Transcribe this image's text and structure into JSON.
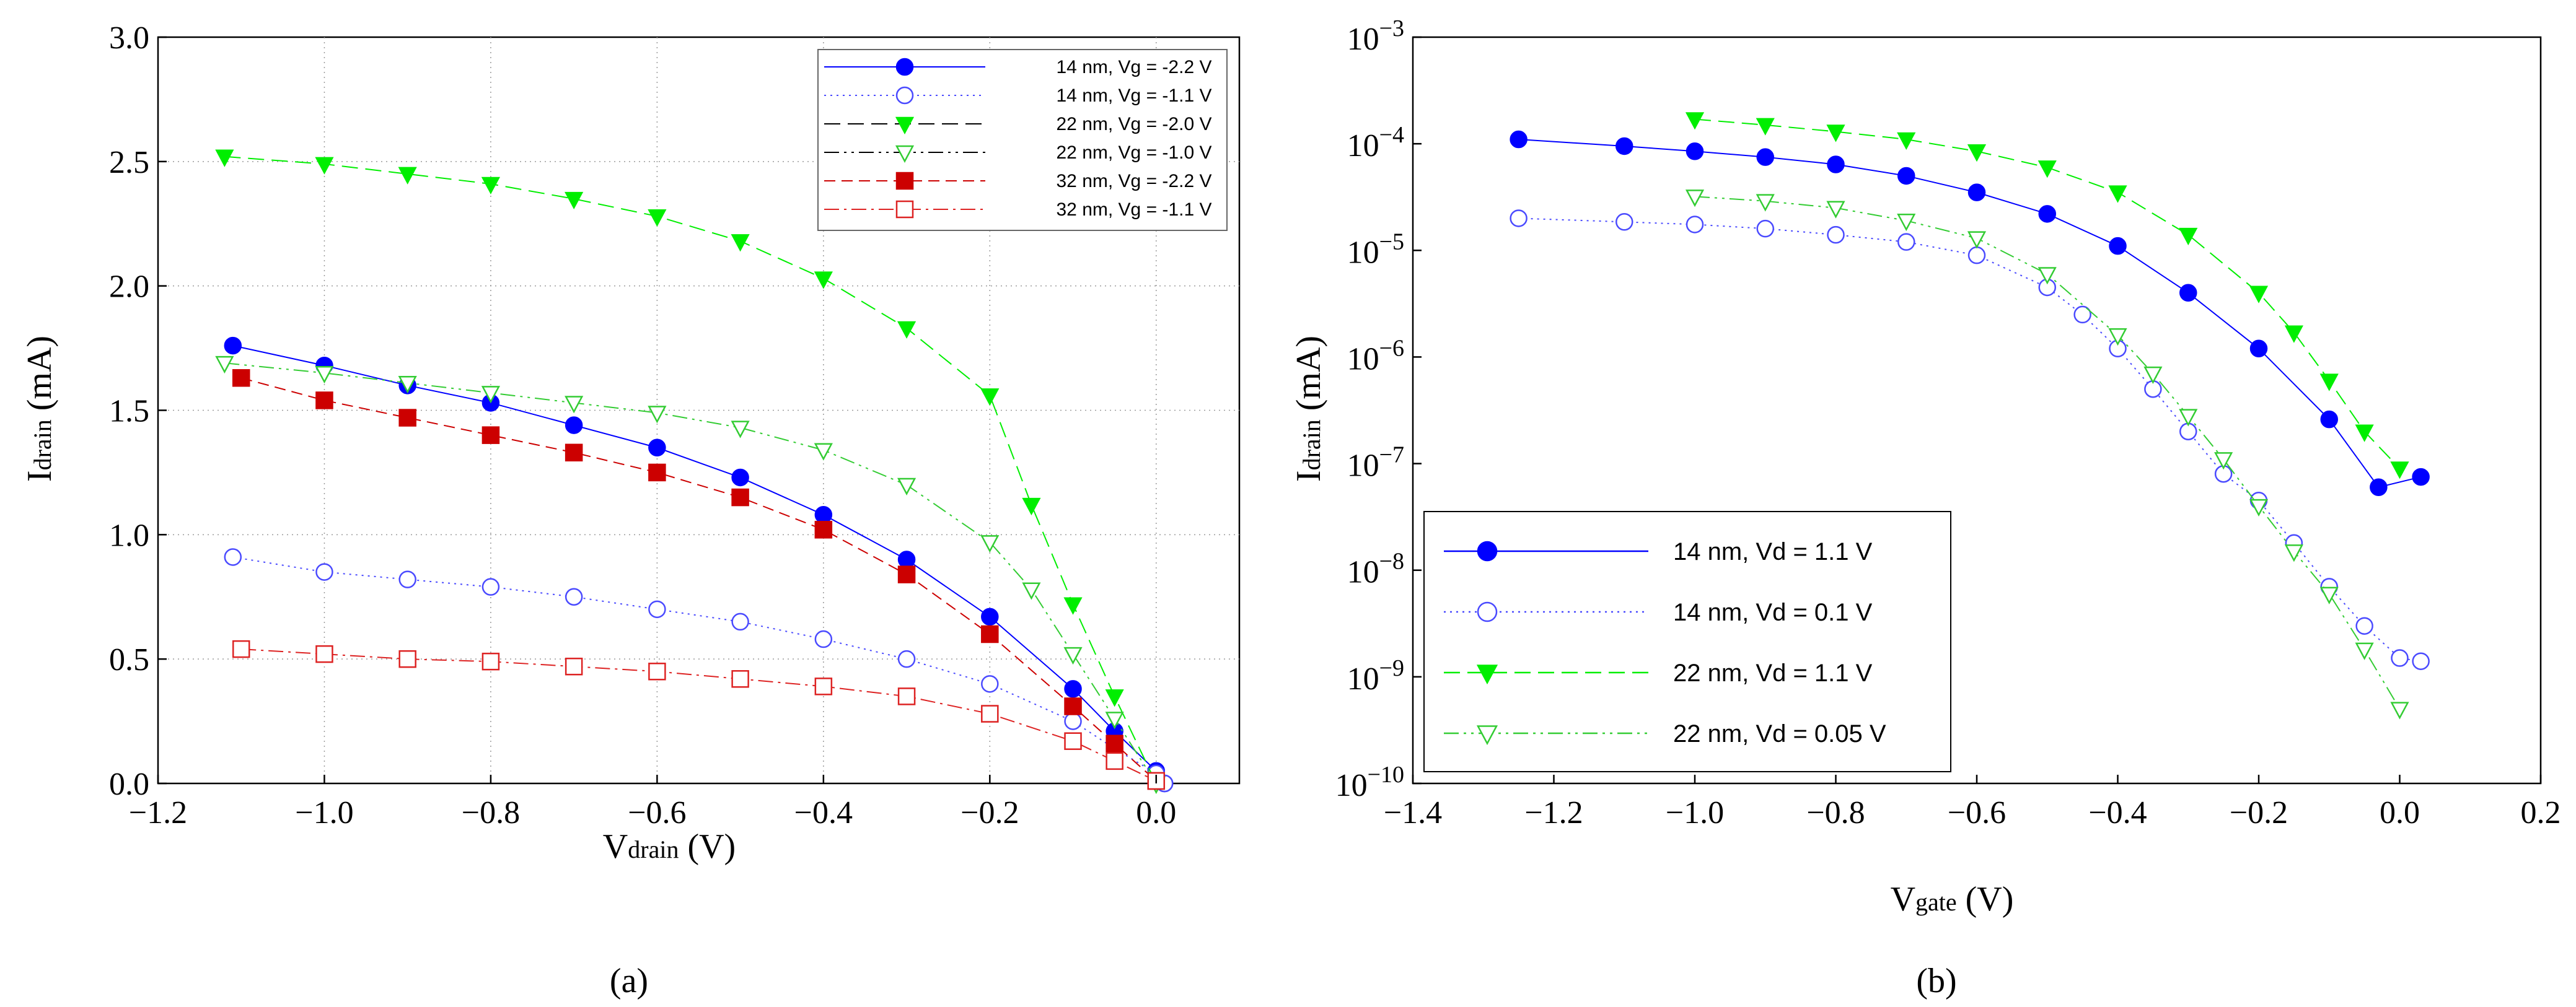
{
  "chart_data": [
    {
      "type": "line",
      "panel_label": "(a)",
      "xlabel": "V",
      "xlabel_sub": "drain",
      "xlabel_unit": " (V)",
      "ylabel": "I",
      "ylabel_sub": "drain",
      "ylabel_unit": " (mA)",
      "xlim": [
        -1.2,
        0.1
      ],
      "ylim": [
        0,
        3.0
      ],
      "xticks": [
        -1.2,
        -1.0,
        -0.8,
        -0.6,
        -0.4,
        -0.2,
        0.0
      ],
      "xtick_labels": [
        "−1.2",
        "−1.0",
        "−0.8",
        "−0.6",
        "−0.4",
        "−0.2",
        "0.0"
      ],
      "yticks": [
        0,
        0.5,
        1.0,
        1.5,
        2.0,
        2.5,
        3.0
      ],
      "ytick_labels": [
        "0.0",
        "0.5",
        "1.0",
        "1.5",
        "2.0",
        "2.5",
        "3.0"
      ],
      "grid": true,
      "legend_position": "top-right",
      "series": [
        {
          "name": "14 nm, Vg = -2.2 V",
          "color": "#0000ff",
          "marker": "circle",
          "filled": true,
          "dash": "solid",
          "x": [
            -1.11,
            -1.0,
            -0.9,
            -0.8,
            -0.7,
            -0.6,
            -0.5,
            -0.4,
            -0.3,
            -0.2,
            -0.1,
            -0.05,
            0.0,
            0.01
          ],
          "y": [
            1.76,
            1.68,
            1.6,
            1.53,
            1.44,
            1.35,
            1.23,
            1.08,
            0.9,
            0.67,
            0.38,
            0.21,
            0.05,
            0.0
          ]
        },
        {
          "name": "14 nm, Vg = -1.1 V",
          "color": "#4a4aff",
          "marker": "circle",
          "filled": false,
          "dash": "dot",
          "x": [
            -1.11,
            -1.0,
            -0.9,
            -0.8,
            -0.7,
            -0.6,
            -0.5,
            -0.4,
            -0.3,
            -0.2,
            -0.1,
            -0.05,
            0.0,
            0.01
          ],
          "y": [
            0.91,
            0.85,
            0.82,
            0.79,
            0.75,
            0.7,
            0.65,
            0.58,
            0.5,
            0.4,
            0.25,
            0.14,
            0.04,
            0.0
          ]
        },
        {
          "name": "22 nm, Vg = -2.0 V",
          "color": "#00ee00",
          "marker": "tri-down",
          "filled": true,
          "dash": "longdash",
          "x": [
            -1.12,
            -1.0,
            -0.9,
            -0.8,
            -0.7,
            -0.6,
            -0.5,
            -0.4,
            -0.3,
            -0.2,
            -0.15,
            -0.1,
            -0.05,
            0.0
          ],
          "y": [
            2.52,
            2.49,
            2.45,
            2.41,
            2.35,
            2.28,
            2.18,
            2.03,
            1.83,
            1.56,
            1.12,
            0.72,
            0.35,
            0.0
          ]
        },
        {
          "name": "22 nm, Vg = -1.0 V",
          "color": "#33cc33",
          "marker": "tri-down",
          "filled": false,
          "dash": "dashdotdot",
          "x": [
            -1.12,
            -1.0,
            -0.9,
            -0.8,
            -0.7,
            -0.6,
            -0.5,
            -0.4,
            -0.3,
            -0.2,
            -0.15,
            -0.1,
            -0.05,
            0.0
          ],
          "y": [
            1.69,
            1.65,
            1.61,
            1.57,
            1.53,
            1.49,
            1.43,
            1.34,
            1.2,
            0.97,
            0.78,
            0.52,
            0.26,
            0.0
          ]
        },
        {
          "name": "32 nm, Vg = -2.2 V",
          "color": "#cc0000",
          "marker": "square",
          "filled": true,
          "dash": "dash",
          "x": [
            -1.1,
            -1.0,
            -0.9,
            -0.8,
            -0.7,
            -0.6,
            -0.5,
            -0.4,
            -0.3,
            -0.2,
            -0.1,
            -0.05,
            0.0
          ],
          "y": [
            1.63,
            1.54,
            1.47,
            1.4,
            1.33,
            1.25,
            1.15,
            1.02,
            0.84,
            0.6,
            0.31,
            0.16,
            0.01
          ]
        },
        {
          "name": "32 nm, Vg = -1.1 V",
          "color": "#dd2222",
          "marker": "square",
          "filled": false,
          "dash": "dashdot",
          "x": [
            -1.1,
            -1.0,
            -0.9,
            -0.8,
            -0.7,
            -0.6,
            -0.5,
            -0.4,
            -0.3,
            -0.2,
            -0.1,
            -0.05,
            0.0
          ],
          "y": [
            0.54,
            0.52,
            0.5,
            0.49,
            0.47,
            0.45,
            0.42,
            0.39,
            0.35,
            0.28,
            0.17,
            0.09,
            0.01
          ]
        }
      ]
    },
    {
      "type": "line",
      "panel_label": "(b)",
      "xlabel": "V",
      "xlabel_sub": "gate",
      "xlabel_unit": " (V)",
      "ylabel": "I",
      "ylabel_sub": "drain",
      "ylabel_unit": " (mA)",
      "yscale": "log",
      "xlim": [
        -1.4,
        0.2
      ],
      "ylim": [
        1e-10,
        0.001
      ],
      "xticks": [
        -1.4,
        -1.2,
        -1.0,
        -0.8,
        -0.6,
        -0.4,
        -0.2,
        0.0,
        0.2
      ],
      "xtick_labels": [
        "−1.4",
        "−1.2",
        "−1.0",
        "−0.8",
        "−0.6",
        "−0.4",
        "−0.2",
        "0.0",
        "0.2"
      ],
      "ytick_exponents": [
        -10,
        -9,
        -8,
        -7,
        -6,
        -5,
        -4,
        -3
      ],
      "ytick_base": "10",
      "ytick_labels": [
        "−10",
        "−9",
        "−8",
        "−7",
        "−6",
        "−5",
        "−4",
        "−3"
      ],
      "grid": false,
      "legend_position": "bottom-left",
      "series": [
        {
          "name": "14 nm, Vd = 1.1 V",
          "color": "#0000ff",
          "marker": "circle",
          "filled": true,
          "dash": "solid",
          "x": [
            -1.25,
            -1.1,
            -1.0,
            -0.9,
            -0.8,
            -0.7,
            -0.6,
            -0.5,
            -0.4,
            -0.3,
            -0.2,
            -0.1,
            -0.03,
            0.03
          ],
          "y": [
            0.00011,
            9.5e-05,
            8.5e-05,
            7.5e-05,
            6.4e-05,
            5e-05,
            3.5e-05,
            2.2e-05,
            1.1e-05,
            4e-06,
            1.2e-06,
            2.6e-07,
            6e-08,
            7.5e-08
          ]
        },
        {
          "name": "14 nm, Vd = 0.1 V",
          "color": "#4a4aff",
          "marker": "circle",
          "filled": false,
          "dash": "dot",
          "x": [
            -1.25,
            -1.1,
            -1.0,
            -0.9,
            -0.8,
            -0.7,
            -0.6,
            -0.5,
            -0.45,
            -0.4,
            -0.35,
            -0.3,
            -0.25,
            -0.2,
            -0.15,
            -0.1,
            -0.05,
            0.0,
            0.03
          ],
          "y": [
            2e-05,
            1.85e-05,
            1.75e-05,
            1.6e-05,
            1.4e-05,
            1.2e-05,
            9e-06,
            4.5e-06,
            2.5e-06,
            1.2e-06,
            5e-07,
            2e-07,
            8e-08,
            4.5e-08,
            1.8e-08,
            7e-09,
            3e-09,
            1.5e-09,
            1.4e-09
          ]
        },
        {
          "name": "22 nm, Vd = 1.1 V",
          "color": "#00ee00",
          "marker": "tri-down",
          "filled": true,
          "dash": "longdash",
          "x": [
            -1.0,
            -0.9,
            -0.8,
            -0.7,
            -0.6,
            -0.5,
            -0.4,
            -0.3,
            -0.2,
            -0.15,
            -0.1,
            -0.05,
            0.0
          ],
          "y": [
            0.00017,
            0.00015,
            0.00013,
            0.00011,
            8.5e-05,
            6e-05,
            3.5e-05,
            1.4e-05,
            4e-06,
            1.7e-06,
            6e-07,
            2e-07,
            9e-08
          ]
        },
        {
          "name": "22 nm, Vd = 0.05 V",
          "color": "#33cc33",
          "marker": "tri-down",
          "filled": false,
          "dash": "dashdotdot",
          "x": [
            -1.0,
            -0.9,
            -0.8,
            -0.7,
            -0.6,
            -0.5,
            -0.4,
            -0.35,
            -0.3,
            -0.25,
            -0.2,
            -0.15,
            -0.1,
            -0.05,
            0.0
          ],
          "y": [
            3.2e-05,
            2.9e-05,
            2.5e-05,
            1.9e-05,
            1.3e-05,
            6e-06,
            1.6e-06,
            7e-07,
            2.8e-07,
            1.1e-07,
            4e-08,
            1.5e-08,
            6e-09,
            1.8e-09,
            5e-10
          ]
        }
      ]
    }
  ]
}
